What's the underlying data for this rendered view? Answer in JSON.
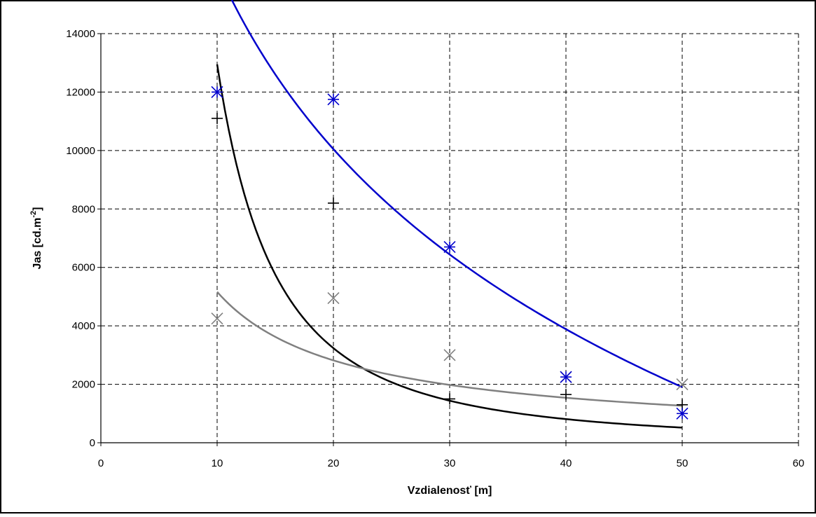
{
  "chart_data": {
    "type": "scatter",
    "xlabel": "Vzdialenosť [m]",
    "ylabel_main": "Jas [cd.m",
    "ylabel_sup": "-2",
    "ylabel_tail": "]",
    "xlim": [
      0,
      60
    ],
    "ylim": [
      0,
      14000
    ],
    "x_ticks": [
      0,
      10,
      20,
      30,
      40,
      50,
      60
    ],
    "y_ticks": [
      0,
      2000,
      4000,
      6000,
      8000,
      10000,
      12000,
      14000
    ],
    "grid": true,
    "grid_style": "dashed",
    "legend": "none",
    "series": [
      {
        "marker": "plus",
        "color": "#000000",
        "points": [
          [
            10,
            11100
          ],
          [
            20,
            8200
          ],
          [
            30,
            1500
          ],
          [
            40,
            1650
          ],
          [
            50,
            1300
          ]
        ],
        "trend": {
          "type": "power",
          "a": 1295000,
          "b": -2.0,
          "x_range": [
            10,
            50
          ]
        }
      },
      {
        "marker": "x",
        "color": "#808080",
        "points": [
          [
            10,
            4250
          ],
          [
            20,
            4950
          ],
          [
            30,
            3000
          ],
          [
            40,
            2250
          ],
          [
            50,
            2000
          ]
        ],
        "trend": {
          "type": "power",
          "a": 38540,
          "b": -0.873,
          "x_range": [
            10,
            50
          ]
        }
      },
      {
        "marker": "asterisk",
        "color": "#0000cc",
        "points": [
          [
            10,
            12000
          ],
          [
            20,
            11750
          ],
          [
            30,
            6700
          ],
          [
            40,
            2250
          ],
          [
            50,
            1000
          ]
        ],
        "trend": {
          "type": "logarithmic",
          "a": 36680,
          "b": -8890,
          "x_range": [
            10,
            50
          ]
        }
      }
    ]
  }
}
